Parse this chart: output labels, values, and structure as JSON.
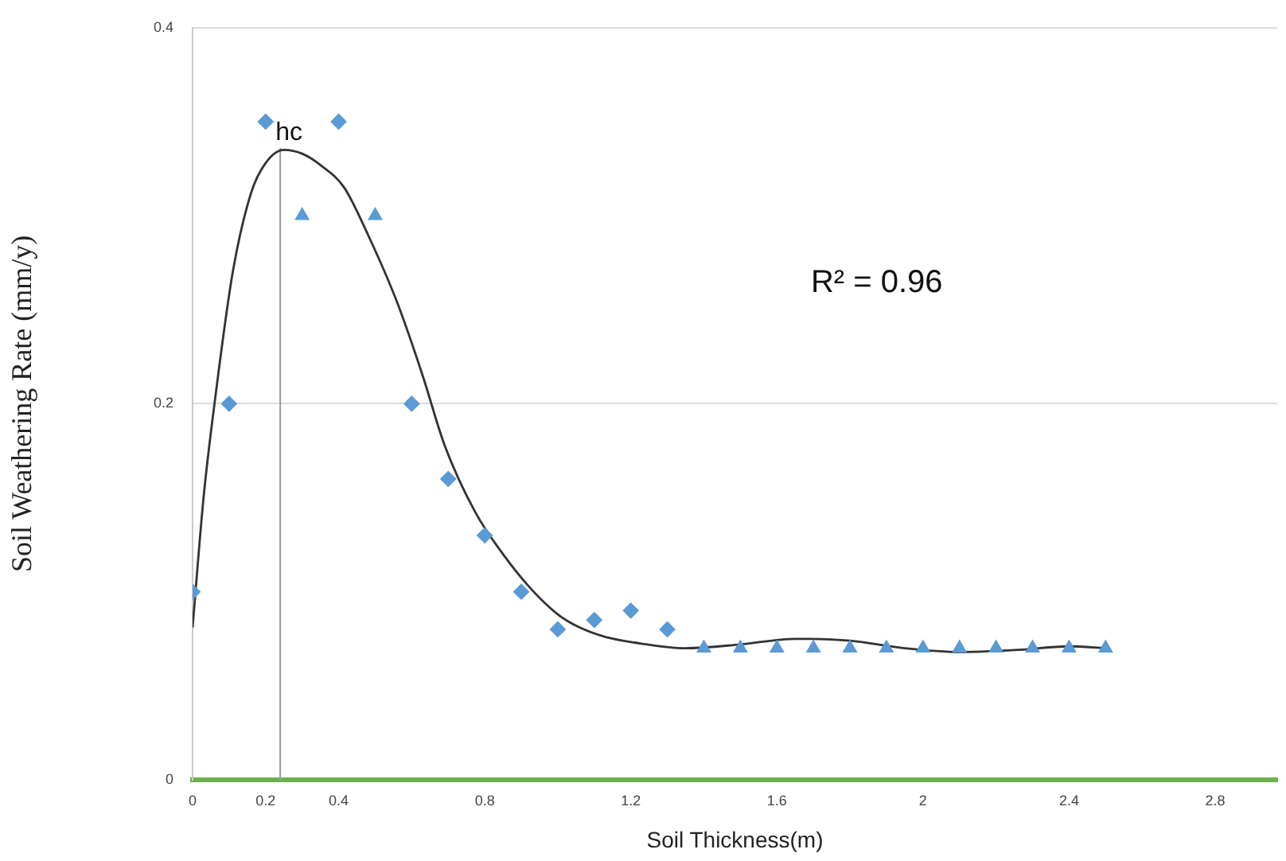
{
  "chart_data": {
    "type": "scatter",
    "xlabel": "Soil Thickness(m)",
    "ylabel": "Soil Weathering Rate (mm/y)",
    "xlim": [
      0,
      2.97
    ],
    "xticks": [
      0,
      0.2,
      0.4,
      0.8,
      1.2,
      1.6,
      2,
      2.4,
      2.8
    ],
    "ylim": [
      0,
      0.4
    ],
    "yticks": [
      0,
      0.2,
      0.4
    ],
    "grid": "y",
    "legend": false,
    "series": [
      {
        "marker": "diamond",
        "color": "#5b9bd5",
        "x": [
          0,
          0.1,
          0.2,
          0.4,
          0.6,
          0.7,
          0.8,
          0.9,
          1.0,
          1.1,
          1.2,
          1.3
        ],
        "values": [
          0.1,
          0.2,
          0.35,
          0.35,
          0.2,
          0.16,
          0.13,
          0.1,
          0.08,
          0.085,
          0.09,
          0.08
        ]
      },
      {
        "marker": "triangle",
        "color": "#5b9bd5",
        "x": [
          0.3,
          0.5,
          1.4,
          1.5,
          1.6,
          1.7,
          1.8,
          1.9,
          2.0,
          2.1,
          2.2,
          2.3,
          2.4,
          2.5
        ],
        "values": [
          0.3,
          0.3,
          0.07,
          0.07,
          0.07,
          0.07,
          0.07,
          0.07,
          0.07,
          0.07,
          0.07,
          0.07,
          0.07,
          0.07
        ]
      },
      {
        "type": "line",
        "marker": "none",
        "line_style": "solid",
        "color": "#333333",
        "x": [
          0,
          0.03,
          0.06,
          0.11,
          0.16,
          0.2,
          0.25,
          0.3,
          0.35,
          0.415,
          0.48,
          0.56,
          0.63,
          0.69,
          0.775,
          0.85,
          0.92,
          1.0,
          1.06,
          1.13,
          1.21,
          1.35,
          1.5,
          1.65,
          1.8,
          1.95,
          2.1,
          2.25,
          2.4,
          2.5
        ],
        "values": [
          0.081,
          0.15,
          0.2,
          0.27,
          0.312,
          0.328,
          0.335,
          0.333,
          0.327,
          0.315,
          0.29,
          0.254,
          0.215,
          0.178,
          0.142,
          0.12,
          0.103,
          0.088,
          0.081,
          0.076,
          0.073,
          0.07,
          0.072,
          0.075,
          0.074,
          0.07,
          0.068,
          0.069,
          0.071,
          0.07
        ]
      }
    ],
    "ref_lines": [
      {
        "axis": "x",
        "value": 0.24,
        "label": "hc",
        "color": "#999999"
      }
    ],
    "annotations": [
      "R² = 0.96"
    ]
  }
}
